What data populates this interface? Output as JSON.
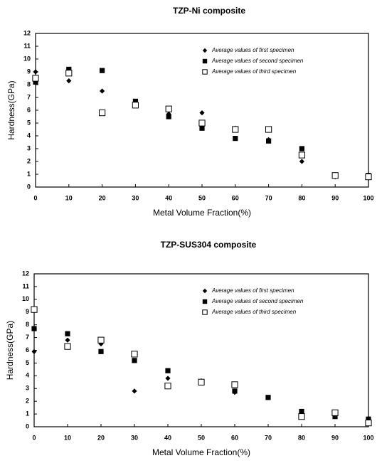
{
  "chart_data": [
    {
      "type": "scatter",
      "title": "TZP-Ni composite",
      "xlabel": "Metal Volume Fraction(%)",
      "ylabel": "Hardness(GPa)",
      "x": [
        0,
        10,
        20,
        30,
        40,
        50,
        60,
        70,
        80,
        90,
        100
      ],
      "xlim": [
        0,
        100
      ],
      "xticks": [
        0,
        10,
        20,
        30,
        40,
        50,
        60,
        70,
        80,
        90,
        100
      ],
      "ylim": [
        0,
        12
      ],
      "yticks": [
        0,
        1,
        2,
        3,
        4,
        5,
        6,
        7,
        8,
        9,
        10,
        11,
        12
      ],
      "legend": "upper right",
      "series": [
        {
          "name": "Average values of first specimen",
          "color": "#000000",
          "marker": "diamond",
          "values": [
            9.0,
            8.3,
            7.5,
            6.5,
            5.7,
            5.8,
            4.6,
            3.7,
            2.0,
            0.8,
            0.7
          ]
        },
        {
          "name": "Average values of second specimen",
          "color": "#000000",
          "marker": "square",
          "values": [
            8.2,
            9.2,
            9.1,
            6.7,
            5.5,
            4.6,
            3.8,
            3.6,
            3.0,
            0.9,
            0.9
          ]
        },
        {
          "name": "Average values of third specimen",
          "color": "#000000",
          "marker": "open-square",
          "values": [
            8.5,
            8.9,
            5.8,
            6.4,
            6.1,
            5.0,
            4.5,
            4.5,
            2.5,
            0.9,
            0.8
          ]
        }
      ]
    },
    {
      "type": "scatter",
      "title": "TZP-SUS304 composite",
      "xlabel": "Metal Volume Fraction(%)",
      "ylabel": "Hardness(GPa)",
      "x": [
        0,
        10,
        20,
        30,
        40,
        50,
        60,
        70,
        80,
        90,
        100
      ],
      "xlim": [
        0,
        100
      ],
      "xticks": [
        0,
        10,
        20,
        30,
        40,
        50,
        60,
        70,
        80,
        90,
        100
      ],
      "ylim": [
        0,
        12
      ],
      "yticks": [
        0,
        1,
        2,
        3,
        4,
        5,
        6,
        7,
        8,
        9,
        10,
        11,
        12
      ],
      "legend": "upper right",
      "series": [
        {
          "name": "Average values of first specimen",
          "color": "#000000",
          "marker": "diamond",
          "values": [
            5.9,
            6.8,
            6.5,
            2.8,
            3.8,
            3.6,
            2.7,
            2.3,
            0.8,
            0.8,
            0.5
          ]
        },
        {
          "name": "Average values of second specimen",
          "color": "#000000",
          "marker": "square",
          "values": [
            7.7,
            7.3,
            5.9,
            5.2,
            4.4,
            3.5,
            2.8,
            2.3,
            1.2,
            0.8,
            0.6
          ]
        },
        {
          "name": "Average values of third specimen",
          "color": "#000000",
          "marker": "open-square",
          "values": [
            9.2,
            6.3,
            6.8,
            5.7,
            3.2,
            3.5,
            3.3,
            null,
            0.8,
            1.1,
            0.3
          ]
        }
      ]
    }
  ]
}
